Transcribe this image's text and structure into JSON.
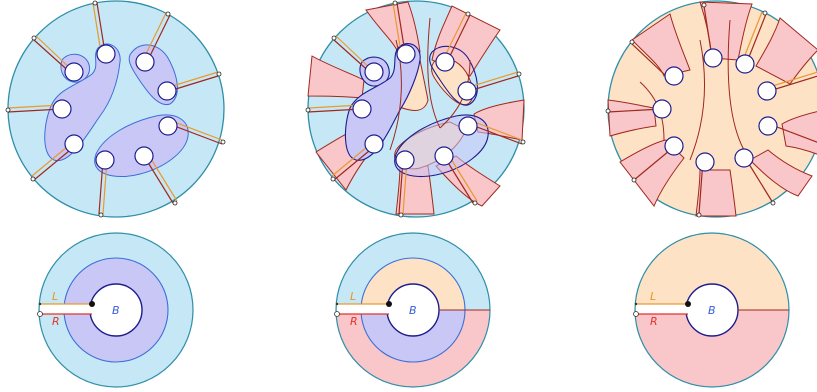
{
  "figure": {
    "panels": [
      {
        "id": "top-left",
        "description_key": "disk-with-holes-blue-regions"
      },
      {
        "id": "top-middle",
        "description_key": "disk-with-holes-mixed-regions"
      },
      {
        "id": "top-right",
        "description_key": "disk-with-holes-red-peach-regions"
      }
    ],
    "labels": {
      "L": "L",
      "R": "R",
      "B": "B"
    },
    "colors": {
      "light_blue": "#c6e8f6",
      "lavender": "#c9c7f5",
      "peach": "#fde2c6",
      "pink": "#f9c6ca",
      "boundary_teal": "#2f8fa8",
      "blue_line": "#3a6fd8",
      "dark_red": "#a0281c",
      "orange": "#e89a2e",
      "red_label": "#e5322d",
      "orange_label": "#e09a20",
      "navy": "#1d1d8f"
    }
  }
}
